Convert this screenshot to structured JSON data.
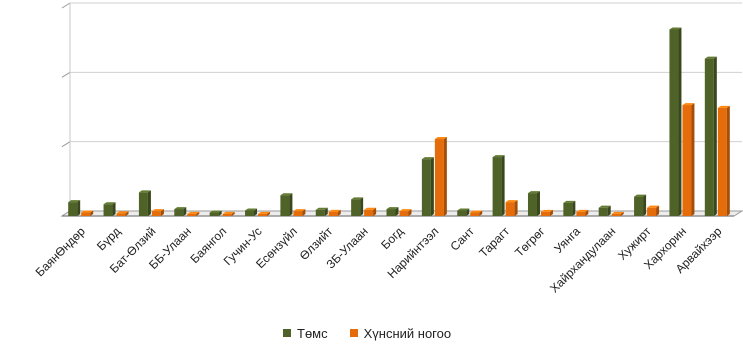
{
  "chart_data": {
    "type": "bar",
    "title": "",
    "xlabel": "",
    "ylabel": "",
    "grid": true,
    "legend_position": "bottom",
    "ylim": [
      0,
      3000
    ],
    "categories": [
      "БаянӨндөр",
      "Бүрд",
      "Бат-Өлзий",
      "ББ-Улаан",
      "Баянгол",
      "Гучин-Ус",
      "Есөнзүйл",
      "Өлзийт",
      "ЗБ-Улаан",
      "Богд",
      "Нарийнтээл",
      "Сант",
      "Тарагт",
      "Төгрөг",
      "Уянга",
      "Хайрхандулаан",
      "Хужирт",
      "Хархорин",
      "Арвайхээр"
    ],
    "series": [
      {
        "name": "Төмс",
        "color": "#4f6228",
        "values": [
          200,
          170,
          340,
          100,
          50,
          80,
          300,
          90,
          240,
          100,
          820,
          80,
          850,
          330,
          190,
          120,
          280,
          2690,
          2270
        ]
      },
      {
        "name": "Хүнсний ногоо",
        "color": "#e46c0a",
        "values": [
          50,
          40,
          70,
          30,
          30,
          30,
          70,
          60,
          90,
          70,
          1110,
          50,
          200,
          60,
          60,
          30,
          120,
          1600,
          1560
        ]
      }
    ]
  }
}
